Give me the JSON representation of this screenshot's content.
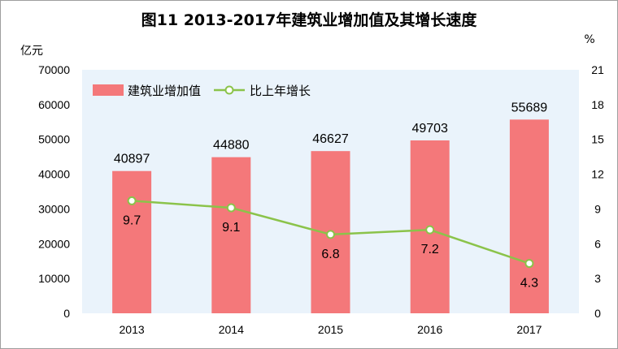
{
  "chart_data": {
    "type": "bar",
    "title": "图11    2013-2017年建筑业增加值及其增长速度",
    "categories": [
      "2013",
      "2014",
      "2015",
      "2016",
      "2017"
    ],
    "y_left_label": "亿元",
    "y_left_ticks": [
      "0",
      "10000",
      "20000",
      "30000",
      "40000",
      "50000",
      "60000",
      "70000"
    ],
    "y_left_lim": [
      0,
      70000
    ],
    "y_right_label": "%",
    "y_right_ticks": [
      "0",
      "3",
      "6",
      "9",
      "12",
      "15",
      "18",
      "21"
    ],
    "y_right_lim": [
      0,
      21
    ],
    "legend_position": "top-left",
    "grid": false,
    "series": [
      {
        "name": "建筑业增加值",
        "type": "bar",
        "axis": "left",
        "color": "#f4787a",
        "values": [
          40897,
          44880,
          46627,
          49703,
          55689
        ],
        "labels": [
          "40897",
          "44880",
          "46627",
          "49703",
          "55689"
        ]
      },
      {
        "name": "比上年增长",
        "type": "line",
        "axis": "right",
        "color": "#8bc34a",
        "values": [
          9.7,
          9.1,
          6.8,
          7.2,
          4.3
        ],
        "labels": [
          "9.7",
          "9.1",
          "6.8",
          "7.2",
          "4.3"
        ]
      }
    ]
  }
}
